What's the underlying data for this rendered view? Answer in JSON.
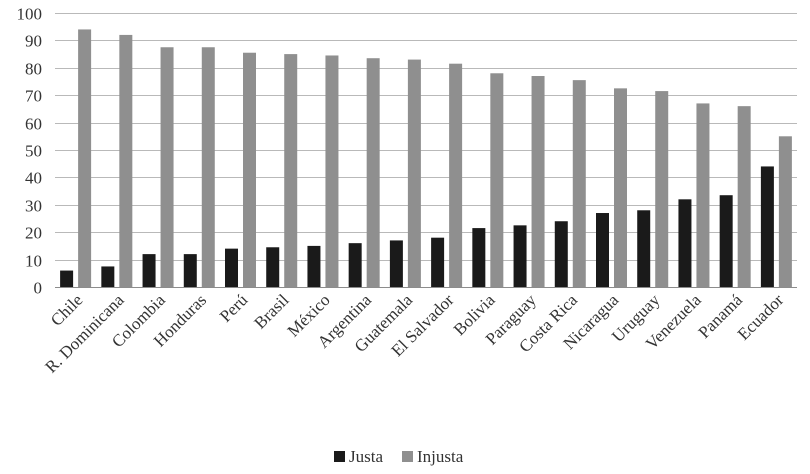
{
  "chart_data": {
    "type": "bar",
    "categories": [
      "Chile",
      "R. Dominicana",
      "Colombia",
      "Honduras",
      "Perú",
      "Brasil",
      "México",
      "Argentina",
      "Guatemala",
      "El Salvador",
      "Bolivia",
      "Paraguay",
      "Costa Rica",
      "Nicaragua",
      "Uruguay",
      "Venezuela",
      "Panamá",
      "Ecuador"
    ],
    "series": [
      {
        "name": "Justa",
        "color": "#1a1a1a",
        "values": [
          6,
          7.5,
          12,
          12,
          14,
          14.5,
          15,
          16,
          17,
          18,
          21.5,
          22.5,
          24,
          27,
          28,
          32,
          33.5,
          44
        ]
      },
      {
        "name": "Injusta",
        "color": "#8f8f8f",
        "values": [
          94,
          92,
          87.5,
          87.5,
          85.5,
          85,
          84.5,
          83.5,
          83,
          81.5,
          78,
          77,
          75.5,
          72.5,
          71.5,
          67,
          66,
          55
        ]
      }
    ],
    "ylim": [
      0,
      100
    ],
    "yticks": [
      0,
      10,
      20,
      30,
      40,
      50,
      60,
      70,
      80,
      90,
      100
    ],
    "grid": true,
    "legend": "bottom-center",
    "title": "",
    "xlabel": "",
    "ylabel": ""
  }
}
